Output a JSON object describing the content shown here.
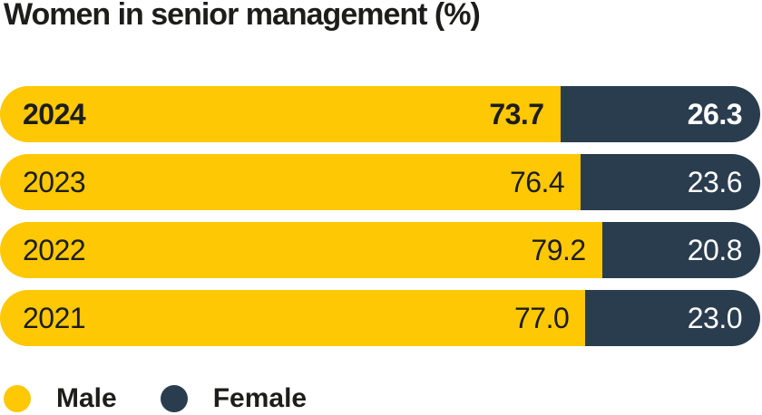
{
  "title": "Women in senior management (%)",
  "colors": {
    "male": "#FEC804",
    "female": "#2A3D4F",
    "ink": "#1D1D1B",
    "value_on_dark": "#FFFFFF",
    "background": "#FFFFFF"
  },
  "chart_data": {
    "type": "bar",
    "subtype": "horizontal-stacked-100pct",
    "title": "Women in senior management (%)",
    "categories": [
      "2024",
      "2023",
      "2022",
      "2021"
    ],
    "series": [
      {
        "name": "Male",
        "color": "#FEC804",
        "values": [
          73.7,
          76.4,
          79.2,
          77.0
        ]
      },
      {
        "name": "Female",
        "color": "#2A3D4F",
        "values": [
          26.3,
          23.6,
          20.8,
          23.0
        ]
      }
    ],
    "value_labels_shown": true,
    "value_decimals": 1,
    "highlight_category": "2024",
    "axis_shown": false,
    "grid": false,
    "legend_position": "bottom-left"
  },
  "rows": [
    {
      "year": "2024",
      "male": "73.7",
      "female": "26.3",
      "emphasis": true
    },
    {
      "year": "2023",
      "male": "76.4",
      "female": "23.6",
      "emphasis": false
    },
    {
      "year": "2022",
      "male": "79.2",
      "female": "20.8",
      "emphasis": false
    },
    {
      "year": "2021",
      "male": "77.0",
      "female": "23.0",
      "emphasis": false
    }
  ],
  "legend": [
    {
      "label": "Male",
      "color_key": "male"
    },
    {
      "label": "Female",
      "color_key": "female"
    }
  ]
}
